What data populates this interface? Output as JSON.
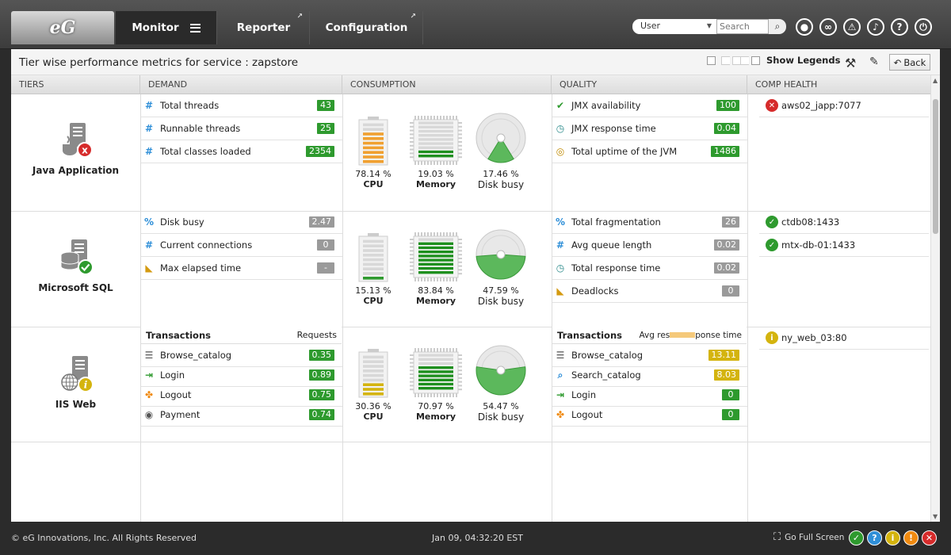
{
  "app": {
    "logo_text": "eG"
  },
  "nav": {
    "monitor": "Monitor",
    "reporter": "Reporter",
    "configuration": "Configuration"
  },
  "toolbar": {
    "user_select": "User",
    "search_placeholder": "Search"
  },
  "header": {
    "title": "Tier wise performance metrics for service : zapstore",
    "show_legends": "Show Legends",
    "back": "Back"
  },
  "columns": {
    "tiers": "TIERS",
    "demand": "DEMAND",
    "consumption": "CONSUMPTION",
    "quality": "QUALITY",
    "comp_health": "COMP HEALTH"
  },
  "tiers": [
    {
      "name": "Java Application",
      "status": "critical",
      "demand": [
        {
          "icon": "hash-icon",
          "label": "Total threads",
          "value": "43",
          "color": "green"
        },
        {
          "icon": "hash-icon",
          "label": "Runnable threads",
          "value": "25",
          "color": "green"
        },
        {
          "icon": "hash-icon",
          "label": "Total classes loaded",
          "value": "2354",
          "color": "green"
        }
      ],
      "consumption": {
        "cpu": {
          "value": "78.14 %",
          "label": "CPU",
          "fraction": 0.7814,
          "color": "#f0a030"
        },
        "memory": {
          "value": "19.03 %",
          "label": "Memory",
          "fraction": 0.1903
        },
        "disk": {
          "value": "17.46 %",
          "label": "Disk busy",
          "fraction": 0.1746
        }
      },
      "quality": [
        {
          "icon": "check-icon",
          "label": "JMX availability",
          "value": "100",
          "color": "green"
        },
        {
          "icon": "clock-icon",
          "label": "JMX response time",
          "value": "0.04",
          "color": "green"
        },
        {
          "icon": "min-icon",
          "label": "Total uptime of the JVM",
          "value": "1486",
          "color": "green"
        }
      ],
      "comp": [
        {
          "name": "aws02_japp:7077",
          "status": "critical"
        }
      ]
    },
    {
      "name": "Microsoft SQL",
      "status": "normal",
      "demand": [
        {
          "icon": "percent-icon",
          "label": "Disk busy",
          "value": "2.47",
          "color": "gray"
        },
        {
          "icon": "hash-icon",
          "label": "Current connections",
          "value": "0",
          "color": "gray"
        },
        {
          "icon": "ruler-icon",
          "label": "Max elapsed time",
          "value": "-",
          "color": "gray"
        }
      ],
      "consumption": {
        "cpu": {
          "value": "15.13 %",
          "label": "CPU",
          "fraction": 0.1513,
          "color": "#2e9a2e"
        },
        "memory": {
          "value": "83.84 %",
          "label": "Memory",
          "fraction": 0.8384
        },
        "disk": {
          "value": "47.59 %",
          "label": "Disk busy",
          "fraction": 0.4759
        }
      },
      "quality": [
        {
          "icon": "percent-icon",
          "label": "Total fragmentation",
          "value": "26",
          "color": "gray"
        },
        {
          "icon": "hash-icon",
          "label": "Avg queue length",
          "value": "0.02",
          "color": "gray"
        },
        {
          "icon": "clock-icon",
          "label": "Total response time",
          "value": "0.02",
          "color": "gray"
        },
        {
          "icon": "ruler-icon",
          "label": "Deadlocks",
          "value": "0",
          "color": "gray"
        }
      ],
      "comp": [
        {
          "name": "ctdb08:1433",
          "status": "normal"
        },
        {
          "name": "mtx-db-01:1433",
          "status": "normal"
        }
      ]
    },
    {
      "name": "IIS Web",
      "status": "warning",
      "demand_head": {
        "left": "Transactions",
        "right": "Requests"
      },
      "demand": [
        {
          "icon": "page-icon",
          "label": "Browse_catalog",
          "value": "0.35",
          "color": "green"
        },
        {
          "icon": "login-icon",
          "label": "Login",
          "value": "0.89",
          "color": "green"
        },
        {
          "icon": "puzzle-icon",
          "label": "Logout",
          "value": "0.75",
          "color": "green"
        },
        {
          "icon": "moneybag-icon",
          "label": "Payment",
          "value": "0.74",
          "color": "green"
        }
      ],
      "consumption": {
        "cpu": {
          "value": "30.36 %",
          "label": "CPU",
          "fraction": 0.3036,
          "color": "#d4b40e"
        },
        "memory": {
          "value": "70.97 %",
          "label": "Memory",
          "fraction": 0.7097
        },
        "disk": {
          "value": "54.47 %",
          "label": "Disk busy",
          "fraction": 0.5447
        }
      },
      "quality_head": {
        "left": "Transactions",
        "right_a": "Avg res",
        "right_b": "ponse time"
      },
      "quality": [
        {
          "icon": "page-icon",
          "label": "Browse_catalog",
          "value": "13.11",
          "color": "yellow"
        },
        {
          "icon": "search-icon",
          "label": "Search_catalog",
          "value": "8.03",
          "color": "yellow"
        },
        {
          "icon": "login-icon",
          "label": "Login",
          "value": "0",
          "color": "green"
        },
        {
          "icon": "puzzle-icon",
          "label": "Logout",
          "value": "0",
          "color": "green"
        }
      ],
      "comp": [
        {
          "name": "ny_web_03:80",
          "status": "warning"
        }
      ]
    }
  ],
  "footer": {
    "copyright": "© eG Innovations, Inc. All Rights Reserved",
    "datetime": "Jan 09, 04:32:20 EST",
    "fullscreen": "Go Full Screen"
  },
  "colors": {
    "green": "#2e9a2e",
    "gray": "#9a9a9a",
    "yellow": "#d4b40e",
    "critical": "#d62b2b",
    "warning": "#d4b40e",
    "info": "#2f8fd8",
    "alert": "#f08a10"
  }
}
